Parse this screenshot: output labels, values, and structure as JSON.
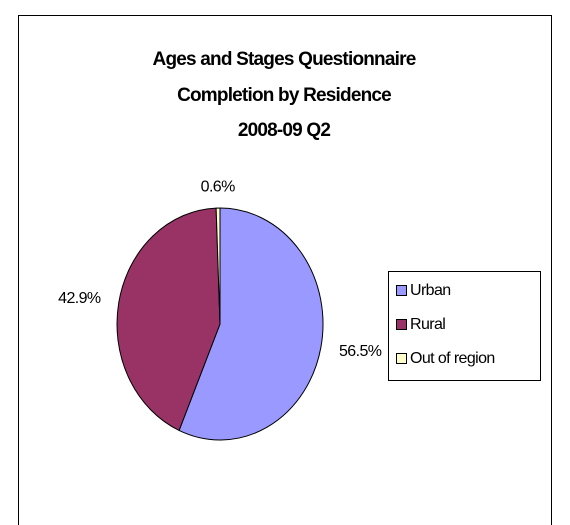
{
  "chart_data": {
    "type": "pie",
    "title": [
      "Ages and Stages Questionnaire",
      "Completion by Residence",
      "2008-09 Q2"
    ],
    "categories": [
      "Urban",
      "Rural",
      "Out of region"
    ],
    "values": [
      56.5,
      42.9,
      0.6
    ],
    "value_labels": [
      "56.5%",
      "42.9%",
      "0.6%"
    ],
    "colors": [
      "#9999ff",
      "#993366",
      "#ffffcc"
    ],
    "legend": "right"
  }
}
